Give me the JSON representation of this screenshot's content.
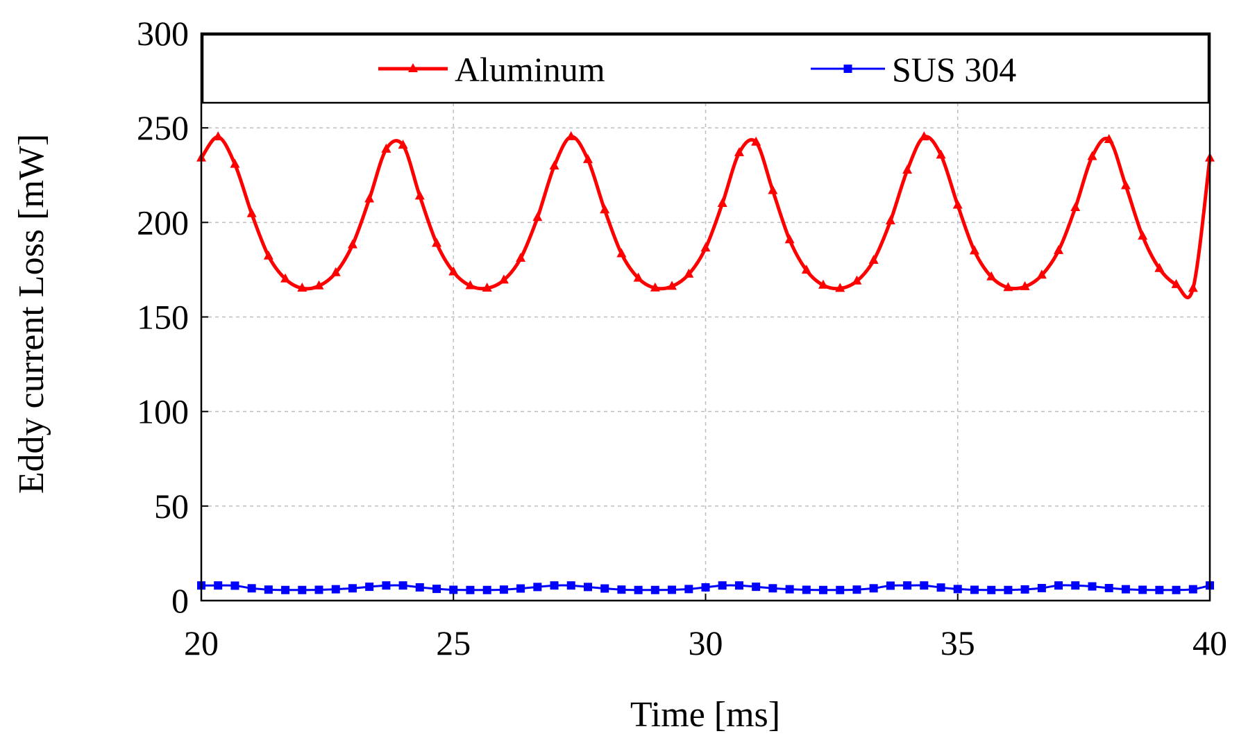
{
  "chart_data": {
    "type": "line",
    "title": "",
    "xlabel": "Time [ms]",
    "ylabel": "Eddy current Loss [mW]",
    "xlim": [
      20,
      40
    ],
    "ylim": [
      0,
      300
    ],
    "xticks": [
      20,
      25,
      30,
      35,
      40
    ],
    "yticks": [
      0,
      50,
      100,
      150,
      200,
      250,
      300
    ],
    "xtick_labels": [
      "20",
      "25",
      "30",
      "35",
      "40"
    ],
    "ytick_labels": [
      "0",
      "50",
      "100",
      "150",
      "200",
      "250",
      "300"
    ],
    "grid": true,
    "legend_position": "top",
    "series": [
      {
        "name": "Aluminum",
        "color": "#ff0000",
        "marker": "triangle",
        "x": [
          20.0,
          20.333,
          20.667,
          21.0,
          21.333,
          21.667,
          22.0,
          22.333,
          22.667,
          23.0,
          23.333,
          23.667,
          24.0,
          24.333,
          24.667,
          25.0,
          25.333,
          25.667,
          26.0,
          26.333,
          26.667,
          27.0,
          27.333,
          27.667,
          28.0,
          28.333,
          28.667,
          29.0,
          29.333,
          29.667,
          30.0,
          30.333,
          30.667,
          31.0,
          31.333,
          31.667,
          32.0,
          32.333,
          32.667,
          33.0,
          33.333,
          33.667,
          34.0,
          34.333,
          34.667,
          35.0,
          35.333,
          35.667,
          36.0,
          36.333,
          36.667,
          37.0,
          37.333,
          37.667,
          38.0,
          38.333,
          38.667,
          39.0,
          39.333,
          39.667,
          40.0
        ],
        "y": [
          234,
          245.2,
          230.7,
          204.6,
          182.2,
          170.1,
          165.2,
          166.4,
          173.4,
          188.1,
          212.4,
          238.7,
          240.8,
          213.9,
          188.9,
          173.8,
          166.5,
          165.2,
          169.5,
          181.0,
          202.6,
          229.8,
          245.3,
          233.2,
          206.6,
          183.4,
          170.5,
          165.3,
          166.2,
          172.6,
          186.4,
          210.0,
          236.8,
          242.4,
          216.8,
          190.8,
          174.7,
          166.8,
          165.1,
          169.0,
          179.9,
          200.8,
          227.6,
          245.2,
          235.6,
          209.1,
          184.9,
          171.2,
          165.5,
          166.0,
          172.1,
          185.1,
          207.8,
          234.8,
          243.8,
          219.4,
          192.7,
          175.6,
          167.1,
          165.1,
          234
        ]
      },
      {
        "name": "SUS 304",
        "color": "#0000ff",
        "marker": "square",
        "x": [
          20.0,
          20.333,
          20.667,
          21.0,
          21.333,
          21.667,
          22.0,
          22.333,
          22.667,
          23.0,
          23.333,
          23.667,
          24.0,
          24.333,
          24.667,
          25.0,
          25.333,
          25.667,
          26.0,
          26.333,
          26.667,
          27.0,
          27.333,
          27.667,
          28.0,
          28.333,
          28.667,
          29.0,
          29.333,
          29.667,
          30.0,
          30.333,
          30.667,
          31.0,
          31.333,
          31.667,
          32.0,
          32.333,
          32.667,
          33.0,
          33.333,
          33.667,
          34.0,
          34.333,
          34.667,
          35.0,
          35.333,
          35.667,
          36.0,
          36.333,
          36.667,
          37.0,
          37.333,
          37.667,
          38.0,
          38.333,
          38.667,
          39.0,
          39.333,
          39.667,
          40.0
        ],
        "y": [
          8.0,
          8.0,
          7.9,
          6.5,
          5.8,
          5.6,
          5.6,
          5.7,
          6.0,
          6.5,
          7.3,
          8.0,
          8.0,
          7.0,
          6.2,
          5.7,
          5.6,
          5.6,
          5.8,
          6.4,
          7.2,
          8.0,
          8.0,
          7.2,
          6.4,
          5.8,
          5.6,
          5.6,
          5.7,
          6.1,
          7.0,
          8.0,
          8.0,
          7.3,
          6.5,
          6.0,
          5.7,
          5.6,
          5.6,
          5.8,
          6.5,
          7.9,
          8.0,
          8.0,
          6.9,
          6.1,
          5.7,
          5.6,
          5.6,
          5.9,
          6.6,
          8.0,
          8.0,
          7.5,
          6.6,
          6.0,
          5.7,
          5.6,
          5.6,
          6.0,
          8.0
        ]
      }
    ]
  }
}
